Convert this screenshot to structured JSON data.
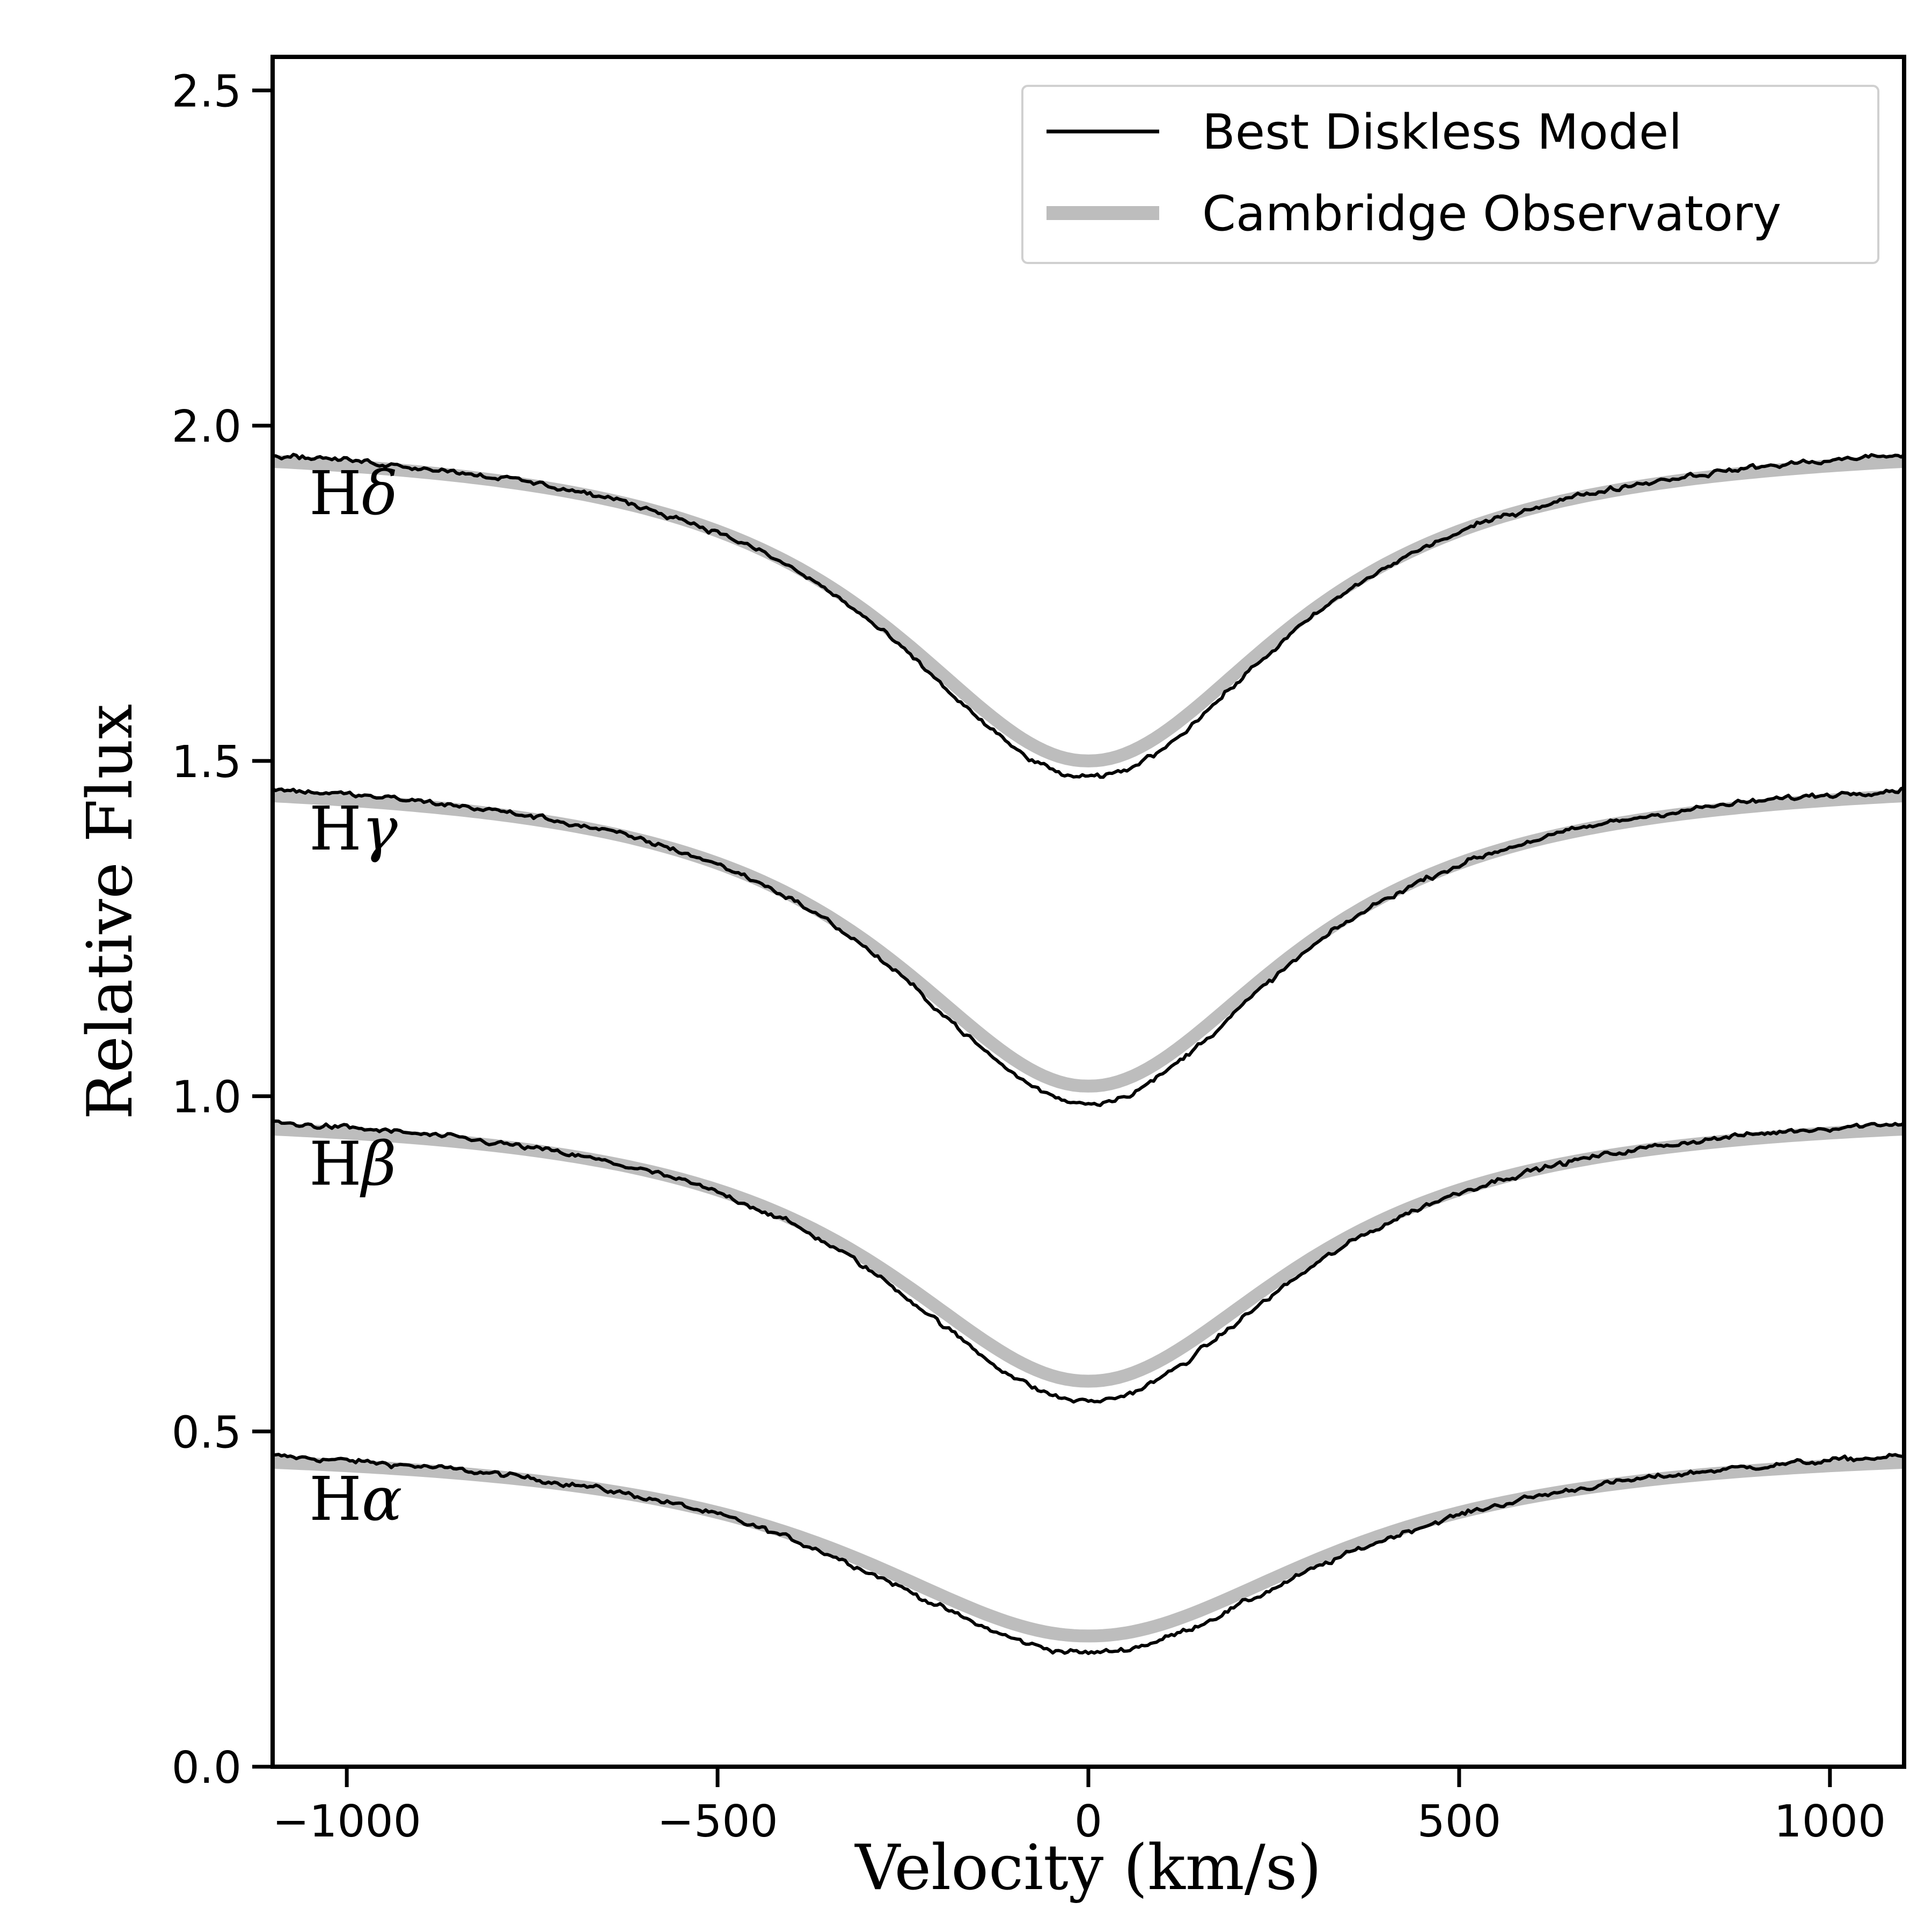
{
  "chart_data": {
    "type": "line",
    "xlabel": "Velocity (km/s)",
    "ylabel": "Relative Flux",
    "xlim": [
      -1100,
      1100
    ],
    "ylim": [
      0.0,
      2.55
    ],
    "x_ticks": [
      -1000,
      -500,
      0,
      500,
      1000
    ],
    "x_tick_labels": [
      "−1000",
      "−500",
      "0",
      "500",
      "1000"
    ],
    "y_ticks": [
      0.0,
      0.5,
      1.0,
      1.5,
      2.0,
      2.5
    ],
    "y_tick_labels": [
      "0.0",
      "0.5",
      "1.0",
      "1.5",
      "2.0",
      "2.5"
    ],
    "grid": false,
    "legend": {
      "position": "top-right",
      "entries": [
        {
          "label": "Best Diskless Model",
          "color": "#000000",
          "style": "thin"
        },
        {
          "label": "Cambridge Observatory",
          "color": "#bdbdbd",
          "style": "thick"
        }
      ]
    },
    "series": [
      {
        "name": "Hα",
        "base": 0.5,
        "model_min": 0.195,
        "observed_min": 0.17,
        "width_kms": 390,
        "model_points": [
          [
            -1100,
            0.49
          ],
          [
            -1000,
            0.48
          ],
          [
            -800,
            0.455
          ],
          [
            -600,
            0.41
          ],
          [
            -400,
            0.33
          ],
          [
            -200,
            0.235
          ],
          [
            0,
            0.195
          ],
          [
            200,
            0.235
          ],
          [
            400,
            0.33
          ],
          [
            600,
            0.41
          ],
          [
            800,
            0.455
          ],
          [
            1000,
            0.48
          ],
          [
            1100,
            0.49
          ]
        ]
      },
      {
        "name": "Hβ",
        "base": 1.0,
        "model_min": 0.575,
        "observed_min": 0.545,
        "width_kms": 340,
        "model_points": [
          [
            -1100,
            0.985
          ],
          [
            -1000,
            0.975
          ],
          [
            -800,
            0.935
          ],
          [
            -600,
            0.87
          ],
          [
            -400,
            0.75
          ],
          [
            -200,
            0.625
          ],
          [
            0,
            0.575
          ],
          [
            200,
            0.625
          ],
          [
            400,
            0.75
          ],
          [
            600,
            0.87
          ],
          [
            800,
            0.935
          ],
          [
            1000,
            0.975
          ],
          [
            1100,
            0.985
          ]
        ]
      },
      {
        "name": "Hγ",
        "base": 1.5,
        "model_min": 1.015,
        "observed_min": 0.99,
        "width_kms": 330,
        "model_points": [
          [
            -1100,
            1.485
          ],
          [
            -1000,
            1.47
          ],
          [
            -800,
            1.42
          ],
          [
            -600,
            1.34
          ],
          [
            -400,
            1.2
          ],
          [
            -200,
            1.07
          ],
          [
            0,
            1.015
          ],
          [
            200,
            1.07
          ],
          [
            400,
            1.2
          ],
          [
            600,
            1.34
          ],
          [
            800,
            1.42
          ],
          [
            1000,
            1.47
          ],
          [
            1100,
            1.485
          ]
        ]
      },
      {
        "name": "Hδ",
        "base": 2.0,
        "model_min": 1.5,
        "observed_min": 1.475,
        "width_kms": 330,
        "model_points": [
          [
            -1100,
            1.985
          ],
          [
            -1000,
            1.97
          ],
          [
            -800,
            1.92
          ],
          [
            -600,
            1.83
          ],
          [
            -400,
            1.69
          ],
          [
            -200,
            1.56
          ],
          [
            0,
            1.5
          ],
          [
            200,
            1.56
          ],
          [
            400,
            1.69
          ],
          [
            600,
            1.83
          ],
          [
            800,
            1.92
          ],
          [
            1000,
            1.97
          ],
          [
            1100,
            1.985
          ]
        ]
      }
    ]
  }
}
